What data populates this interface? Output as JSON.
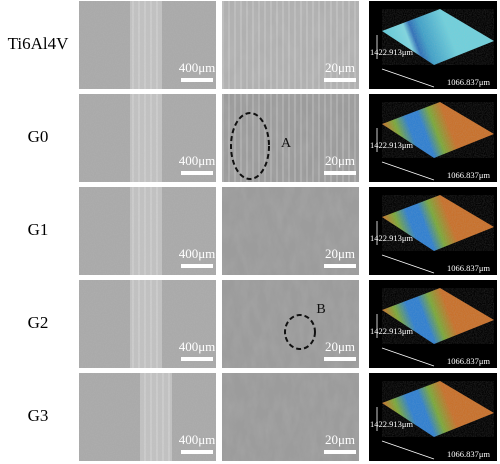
{
  "rows": [
    {
      "label": "Ti6Al4V",
      "sem_low_scale": "400μm",
      "sem_high_scale": "20μm",
      "profile_y": "1422.913μm",
      "profile_x": "1066.837μm"
    },
    {
      "label": "G0",
      "sem_low_scale": "400μm",
      "sem_high_scale": "20μm",
      "profile_y": "1422.913μm",
      "profile_x": "1066.837μm",
      "annotation": "A"
    },
    {
      "label": "G1",
      "sem_low_scale": "400μm",
      "sem_high_scale": "20μm",
      "profile_y": "1422.913μm",
      "profile_x": "1066.837μm"
    },
    {
      "label": "G2",
      "sem_low_scale": "400μm",
      "sem_high_scale": "20μm",
      "profile_y": "1422.913μm",
      "profile_x": "1066.837μm",
      "annotation": "B"
    },
    {
      "label": "G3",
      "sem_low_scale": "400μm",
      "sem_high_scale": "20μm",
      "profile_y": "1422.913μm",
      "profile_x": "1066.837μm"
    }
  ]
}
